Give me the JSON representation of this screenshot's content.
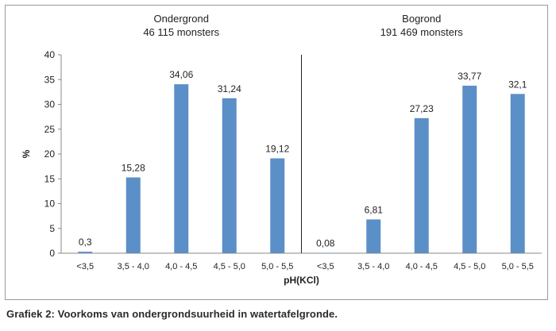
{
  "chart_data": {
    "type": "bar",
    "ylabel": "%",
    "xlabel": "pH(KCl)",
    "ylim": [
      0,
      40
    ],
    "yticks": [
      0,
      5,
      10,
      15,
      20,
      25,
      30,
      35,
      40
    ],
    "bar_color": "#5b8fc7",
    "panels": [
      {
        "title": [
          "Ondergrond",
          "46 115 monsters"
        ],
        "categories": [
          "<3,5",
          "3,5 - 4,0",
          "4,0 - 4,5",
          "4,5 - 5,0",
          "5,0 - 5,5"
        ],
        "values": [
          0.3,
          15.28,
          34.06,
          31.24,
          19.12
        ],
        "value_labels": [
          "0,3",
          "15,28",
          "34,06",
          "31,24",
          "19,12"
        ]
      },
      {
        "title": [
          "Bogrond",
          "191 469 monsters"
        ],
        "categories": [
          "<3,5",
          "3,5 - 4,0",
          "4,0 - 4,5",
          "4,5 - 5,0",
          "5,0 - 5,5"
        ],
        "values": [
          0.08,
          6.81,
          27.23,
          33.77,
          32.1
        ],
        "value_labels": [
          "0,08",
          "6,81",
          "27,23",
          "33,77",
          "32,1"
        ]
      }
    ]
  },
  "caption": "Grafiek 2: Voorkoms van ondergrondsuurheid in watertafelgronde."
}
